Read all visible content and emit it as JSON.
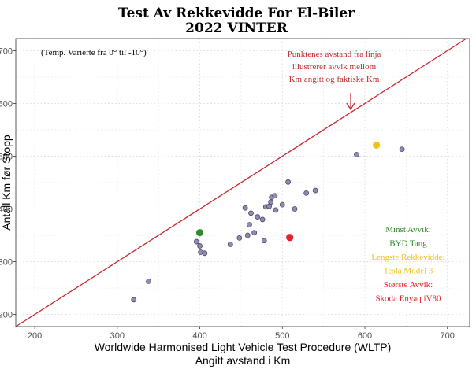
{
  "chart_data": {
    "type": "scatter",
    "title": "Test Av Rekkevidde For El-Biler",
    "subtitle": "2022 VINTER",
    "xlabel": "Worldwide Harmonised Light Vehicle Test Procedure (WLTP)",
    "xlabel2": "Angitt avstand i Km",
    "ylabel": "Antall Km før Stopp",
    "xlim": [
      177,
      727
    ],
    "ylim": [
      177,
      723
    ],
    "x_ticks": [
      200,
      300,
      400,
      500,
      600,
      700
    ],
    "y_ticks": [
      200,
      300,
      400,
      500,
      600,
      700
    ],
    "grid": true,
    "reference_line": "y = x",
    "colors": {
      "points": "#8f8bb4",
      "point_stroke": "#4a4862",
      "line": "#c8282e",
      "green": "#2e8b2e",
      "yellow": "#f0c419",
      "red": "#e8202a"
    },
    "points": [
      {
        "x": 320,
        "y": 228
      },
      {
        "x": 338,
        "y": 263
      },
      {
        "x": 396,
        "y": 338
      },
      {
        "x": 400,
        "y": 330
      },
      {
        "x": 401,
        "y": 318
      },
      {
        "x": 406,
        "y": 316
      },
      {
        "x": 437,
        "y": 333
      },
      {
        "x": 448,
        "y": 345
      },
      {
        "x": 455,
        "y": 402
      },
      {
        "x": 458,
        "y": 350
      },
      {
        "x": 460,
        "y": 370
      },
      {
        "x": 462,
        "y": 392
      },
      {
        "x": 466,
        "y": 355
      },
      {
        "x": 470,
        "y": 385
      },
      {
        "x": 476,
        "y": 380
      },
      {
        "x": 478,
        "y": 340
      },
      {
        "x": 480,
        "y": 404
      },
      {
        "x": 484,
        "y": 405
      },
      {
        "x": 486,
        "y": 413
      },
      {
        "x": 487,
        "y": 422
      },
      {
        "x": 491,
        "y": 425
      },
      {
        "x": 492,
        "y": 398
      },
      {
        "x": 500,
        "y": 408
      },
      {
        "x": 507,
        "y": 451
      },
      {
        "x": 515,
        "y": 400
      },
      {
        "x": 529,
        "y": 430
      },
      {
        "x": 540,
        "y": 435
      },
      {
        "x": 590,
        "y": 503
      },
      {
        "x": 645,
        "y": 513
      }
    ],
    "highlights": [
      {
        "label": "BYD Tang",
        "x": 400,
        "y": 355,
        "color": "#2e8b2e"
      },
      {
        "label": "Tesla Model 3",
        "x": 614,
        "y": 521,
        "color": "#f0c419"
      },
      {
        "label": "Skoda Enyaq iV80",
        "x": 509,
        "y": 346,
        "color": "#e8202a"
      }
    ],
    "annotations": {
      "temp_note": "(Temp. Varierte fra 0° til -10°)",
      "explain_lines": [
        "Punktenes avstand fra linja",
        "illustrerer avvik mellom",
        "Km angitt og faktiske Km"
      ],
      "legend_lines": [
        {
          "text": "Minst Avvik:",
          "color": "#2e8b2e"
        },
        {
          "text": "BYD Tang",
          "color": "#2e8b2e"
        },
        {
          "text": "Lengste Rekkevidde:",
          "color": "#f0c419"
        },
        {
          "text": "Tesla Model 3",
          "color": "#f0c419"
        },
        {
          "text": "Største Avvik:",
          "color": "#e8202a"
        },
        {
          "text": "Skoda Enyaq iV80",
          "color": "#e8202a"
        }
      ]
    }
  }
}
